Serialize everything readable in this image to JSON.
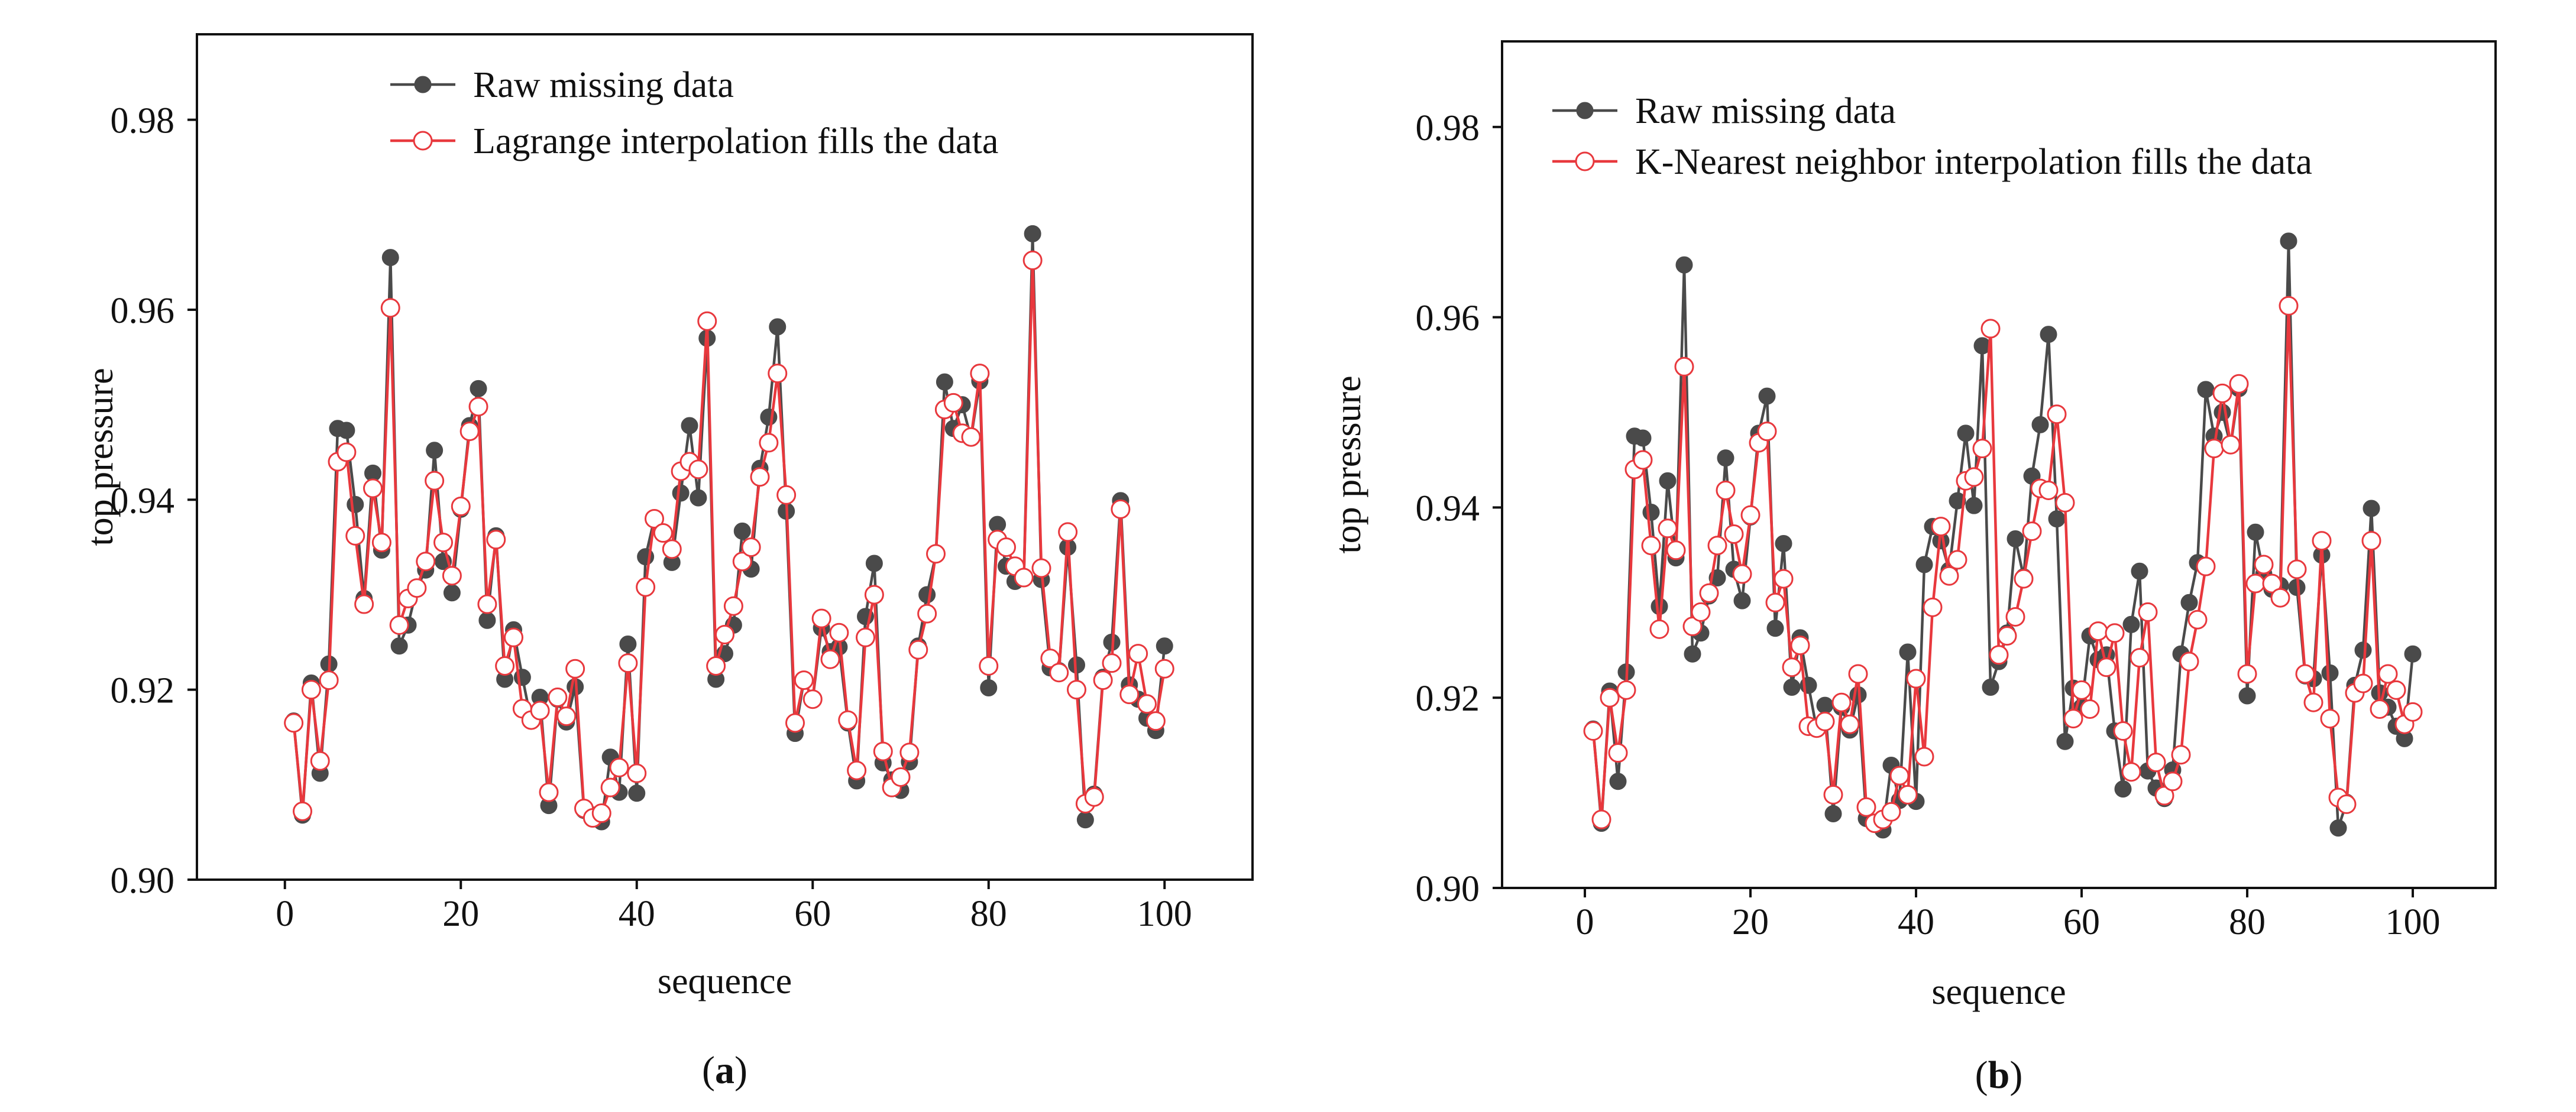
{
  "colors": {
    "raw": "#4a4a4a",
    "filled": "#e8383d",
    "axis": "#111111"
  },
  "chart_data": [
    {
      "type": "line",
      "panel_label": "a",
      "xlabel": "sequence",
      "ylabel": "top pressure",
      "xlim": [
        -10,
        110
      ],
      "ylim": [
        0.9,
        0.989
      ],
      "xticks": [
        0,
        20,
        40,
        60,
        80,
        100
      ],
      "xtick_labels": [
        "0",
        "20",
        "40",
        "60",
        "80",
        "100"
      ],
      "yticks": [
        0.9,
        0.92,
        0.94,
        0.96,
        0.98
      ],
      "ytick_labels": [
        "0.90",
        "0.92",
        "0.94",
        "0.96",
        "0.98"
      ],
      "legend_position": "top-center",
      "series": [
        {
          "name": "Raw missing data",
          "marker": "filled-circle",
          "x": [
            1,
            2,
            3,
            4,
            5,
            6,
            7,
            8,
            9,
            10,
            11,
            12,
            13,
            14,
            15,
            16,
            17,
            18,
            19,
            20,
            21,
            22,
            23,
            24,
            25,
            26,
            27,
            28,
            29,
            30,
            31,
            32,
            33,
            34,
            35,
            36,
            37,
            38,
            39,
            40,
            41,
            42,
            43,
            44,
            45,
            46,
            47,
            48,
            49,
            50,
            51,
            52,
            53,
            54,
            55,
            56,
            57,
            58,
            59,
            60,
            61,
            62,
            63,
            64,
            65,
            66,
            67,
            68,
            69,
            70,
            71,
            72,
            73,
            74,
            75,
            76,
            77,
            78,
            79,
            80,
            81,
            82,
            83,
            84,
            85,
            86,
            87,
            88,
            89,
            90,
            91,
            92,
            93,
            94,
            95,
            96,
            97,
            98,
            99,
            100
          ],
          "values": [
            0.9167,
            0.9068,
            0.9207,
            0.9112,
            0.9227,
            0.9475,
            0.9473,
            0.9395,
            0.9296,
            0.9428,
            0.9347,
            0.9655,
            0.9246,
            0.9268,
            0.9307,
            0.9326,
            0.9452,
            0.9335,
            0.9302,
            0.939,
            0.9478,
            0.9517,
            0.9273,
            0.9362,
            0.9211,
            0.9263,
            0.9213,
            0.9167,
            0.9192,
            0.9078,
            0.919,
            0.9166,
            0.9203,
            0.9073,
            0.9068,
            0.9061,
            0.9129,
            0.9092,
            0.9248,
            0.9091,
            0.934,
            0.938,
            0.9365,
            0.9334,
            0.9407,
            0.9478,
            0.9402,
            0.957,
            0.9211,
            0.9238,
            0.9268,
            0.9367,
            0.9327,
            0.9433,
            0.9487,
            0.9582,
            0.9388,
            0.9154,
            0.921,
            0.919,
            0.9265,
            0.924,
            0.9245,
            0.9165,
            0.9104,
            0.9277,
            0.9333,
            0.9123,
            0.9105,
            0.9094,
            0.9124,
            0.9246,
            0.93,
            0.9342,
            0.9524,
            0.9475,
            0.95,
            0.9465,
            0.9525,
            0.9202,
            0.9374,
            0.933,
            0.9314,
            0.9318,
            0.968,
            0.9316,
            0.9223,
            0.922,
            0.935,
            0.9226,
            0.9063,
            0.909,
            0.9213,
            0.925,
            0.9399,
            0.9205,
            0.919,
            0.917,
            0.9157,
            0.9246
          ]
        },
        {
          "name": "Lagrange interpolation fills the data",
          "marker": "open-circle",
          "x": [
            1,
            2,
            3,
            4,
            5,
            6,
            7,
            8,
            9,
            10,
            11,
            12,
            13,
            14,
            15,
            16,
            17,
            18,
            19,
            20,
            21,
            22,
            23,
            24,
            25,
            26,
            27,
            28,
            29,
            30,
            31,
            32,
            33,
            34,
            35,
            36,
            37,
            38,
            39,
            40,
            41,
            42,
            43,
            44,
            45,
            46,
            47,
            48,
            49,
            50,
            51,
            52,
            53,
            54,
            55,
            56,
            57,
            58,
            59,
            60,
            61,
            62,
            63,
            64,
            65,
            66,
            67,
            68,
            69,
            70,
            71,
            72,
            73,
            74,
            75,
            76,
            77,
            78,
            79,
            80,
            81,
            82,
            83,
            84,
            85,
            86,
            87,
            88,
            89,
            90,
            91,
            92,
            93,
            94,
            95,
            96,
            97,
            98,
            99,
            100
          ],
          "values": [
            0.9165,
            0.9072,
            0.92,
            0.9125,
            0.921,
            0.944,
            0.945,
            0.9362,
            0.929,
            0.9412,
            0.9355,
            0.9602,
            0.9268,
            0.9296,
            0.9307,
            0.9335,
            0.942,
            0.9355,
            0.932,
            0.9393,
            0.9472,
            0.9498,
            0.929,
            0.9358,
            0.9225,
            0.9255,
            0.918,
            0.9168,
            0.9178,
            0.9092,
            0.9192,
            0.9172,
            0.9222,
            0.9075,
            0.9065,
            0.907,
            0.9097,
            0.9118,
            0.9228,
            0.9112,
            0.9308,
            0.938,
            0.9365,
            0.9348,
            0.943,
            0.944,
            0.9432,
            0.9588,
            0.9225,
            0.9258,
            0.9288,
            0.9335,
            0.935,
            0.9424,
            0.946,
            0.9533,
            0.9405,
            0.9165,
            0.921,
            0.919,
            0.9275,
            0.9232,
            0.926,
            0.9168,
            0.9115,
            0.9255,
            0.93,
            0.9135,
            0.9097,
            0.9108,
            0.9134,
            0.9242,
            0.928,
            0.9343,
            0.9495,
            0.9502,
            0.947,
            0.9466,
            0.9533,
            0.9225,
            0.9358,
            0.935,
            0.933,
            0.9318,
            0.9652,
            0.9328,
            0.9233,
            0.9218,
            0.9366,
            0.92,
            0.908,
            0.9087,
            0.921,
            0.9228,
            0.939,
            0.9195,
            0.9238,
            0.9185,
            0.9167,
            0.9222
          ]
        }
      ]
    },
    {
      "type": "line",
      "panel_label": "b",
      "xlabel": "sequence",
      "ylabel": "top pressure",
      "xlim": [
        -10,
        110
      ],
      "ylim": [
        0.9,
        0.989
      ],
      "xticks": [
        0,
        20,
        40,
        60,
        80,
        100
      ],
      "xtick_labels": [
        "0",
        "20",
        "40",
        "60",
        "80",
        "100"
      ],
      "yticks": [
        0.9,
        0.92,
        0.94,
        0.96,
        0.98
      ],
      "ytick_labels": [
        "0.90",
        "0.92",
        "0.94",
        "0.96",
        "0.98"
      ],
      "legend_position": "top-center",
      "series": [
        {
          "name": "Raw missing data",
          "marker": "filled-circle",
          "x": [
            1,
            2,
            3,
            4,
            5,
            6,
            7,
            8,
            9,
            10,
            11,
            12,
            13,
            14,
            15,
            16,
            17,
            18,
            19,
            20,
            21,
            22,
            23,
            24,
            25,
            26,
            27,
            28,
            29,
            30,
            31,
            32,
            33,
            34,
            35,
            36,
            37,
            38,
            39,
            40,
            41,
            42,
            43,
            44,
            45,
            46,
            47,
            48,
            49,
            50,
            51,
            52,
            53,
            54,
            55,
            56,
            57,
            58,
            59,
            60,
            61,
            62,
            63,
            64,
            65,
            66,
            67,
            68,
            69,
            70,
            71,
            72,
            73,
            74,
            75,
            76,
            77,
            78,
            79,
            80,
            81,
            82,
            83,
            84,
            85,
            86,
            87,
            88,
            89,
            90,
            91,
            92,
            93,
            94,
            95,
            96,
            97,
            98,
            99,
            100
          ],
          "values": [
            0.9167,
            0.9068,
            0.9207,
            0.9112,
            0.9227,
            0.9475,
            0.9473,
            0.9395,
            0.9296,
            0.9428,
            0.9347,
            0.9655,
            0.9246,
            0.9268,
            0.9307,
            0.9326,
            0.9452,
            0.9335,
            0.9302,
            0.939,
            0.9478,
            0.9517,
            0.9273,
            0.9362,
            0.9211,
            0.9263,
            0.9213,
            0.9167,
            0.9192,
            0.9078,
            0.919,
            0.9166,
            0.9203,
            0.9073,
            0.9068,
            0.9061,
            0.9129,
            0.9092,
            0.9248,
            0.9091,
            0.934,
            0.938,
            0.9365,
            0.9334,
            0.9407,
            0.9478,
            0.9402,
            0.957,
            0.9211,
            0.9238,
            0.9268,
            0.9367,
            0.9327,
            0.9433,
            0.9487,
            0.9582,
            0.9388,
            0.9154,
            0.921,
            0.919,
            0.9265,
            0.924,
            0.9245,
            0.9165,
            0.9104,
            0.9277,
            0.9333,
            0.9123,
            0.9105,
            0.9094,
            0.9124,
            0.9246,
            0.93,
            0.9342,
            0.9524,
            0.9475,
            0.95,
            0.9465,
            0.9525,
            0.9202,
            0.9374,
            0.933,
            0.9314,
            0.9318,
            0.968,
            0.9316,
            0.9223,
            0.922,
            0.935,
            0.9226,
            0.9063,
            0.909,
            0.9213,
            0.925,
            0.9399,
            0.9205,
            0.919,
            0.917,
            0.9157,
            0.9246
          ]
        },
        {
          "name": "K-Nearest neighbor interpolation fills the data",
          "marker": "open-circle",
          "x": [
            1,
            2,
            3,
            4,
            5,
            6,
            7,
            8,
            9,
            10,
            11,
            12,
            13,
            14,
            15,
            16,
            17,
            18,
            19,
            20,
            21,
            22,
            23,
            24,
            25,
            26,
            27,
            28,
            29,
            30,
            31,
            32,
            33,
            34,
            35,
            36,
            37,
            38,
            39,
            40,
            41,
            42,
            43,
            44,
            45,
            46,
            47,
            48,
            49,
            50,
            51,
            52,
            53,
            54,
            55,
            56,
            57,
            58,
            59,
            60,
            61,
            62,
            63,
            64,
            65,
            66,
            67,
            68,
            69,
            70,
            71,
            72,
            73,
            74,
            75,
            76,
            77,
            78,
            79,
            80,
            81,
            82,
            83,
            84,
            85,
            86,
            87,
            88,
            89,
            90,
            91,
            92,
            93,
            94,
            95,
            96,
            97,
            98,
            99,
            100
          ],
          "values": [
            0.9165,
            0.9072,
            0.92,
            0.9142,
            0.9208,
            0.944,
            0.945,
            0.936,
            0.9272,
            0.9378,
            0.9355,
            0.9548,
            0.9275,
            0.929,
            0.931,
            0.936,
            0.9418,
            0.9372,
            0.933,
            0.9392,
            0.9468,
            0.948,
            0.93,
            0.9325,
            0.9232,
            0.9255,
            0.917,
            0.9168,
            0.9175,
            0.9098,
            0.9195,
            0.9172,
            0.9225,
            0.9085,
            0.9068,
            0.9072,
            0.908,
            0.9118,
            0.9098,
            0.922,
            0.9138,
            0.9295,
            0.938,
            0.9328,
            0.9345,
            0.9428,
            0.9432,
            0.9462,
            0.9588,
            0.9245,
            0.9265,
            0.9285,
            0.9325,
            0.9375,
            0.942,
            0.9418,
            0.9498,
            0.9405,
            0.9178,
            0.9208,
            0.9188,
            0.927,
            0.9232,
            0.9268,
            0.9165,
            0.9122,
            0.9242,
            0.929,
            0.9132,
            0.9097,
            0.9112,
            0.914,
            0.9238,
            0.9282,
            0.9338,
            0.9462,
            0.952,
            0.9466,
            0.953,
            0.9225,
            0.932,
            0.934,
            0.932,
            0.9305,
            0.9612,
            0.9335,
            0.9225,
            0.9195,
            0.9365,
            0.9178,
            0.9095,
            0.9088,
            0.9205,
            0.9215,
            0.9365,
            0.9188,
            0.9225,
            0.9208,
            0.9172,
            0.9185
          ]
        }
      ]
    }
  ]
}
